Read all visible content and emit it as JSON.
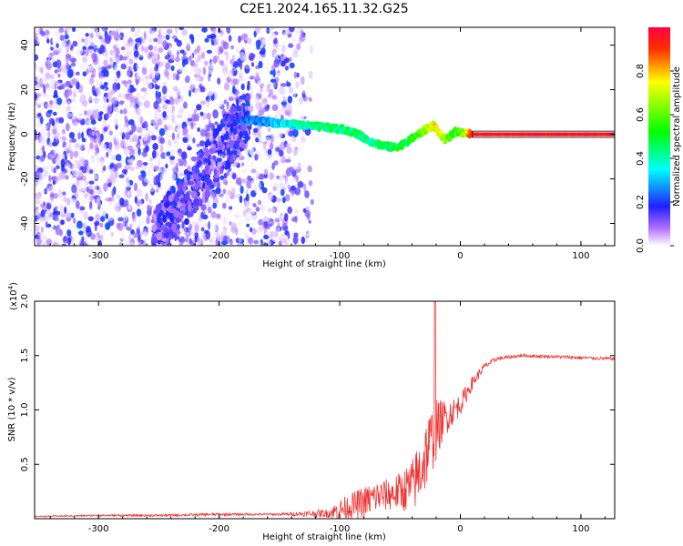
{
  "title": "C2E1.2024.165.11.32.G25",
  "chart_data": [
    {
      "type": "heatmap",
      "xlabel": "Height of straight line (km)",
      "ylabel": "Frequency (Hz)",
      "xlim": [
        -353,
        128
      ],
      "ylim": [
        -50,
        48
      ],
      "x_ticks": [
        -300,
        -200,
        -100,
        0,
        100
      ],
      "x_tick_labels": [
        "-300",
        "-200",
        "-100",
        "0",
        "100"
      ],
      "y_ticks": [
        -40,
        -20,
        0,
        20,
        40
      ],
      "y_tick_labels": [
        "-40",
        "-20",
        "0",
        "20",
        "40"
      ],
      "colorbar": {
        "label": "Normalized spectral amplitude",
        "range": [
          0,
          1
        ],
        "ticks": [
          0,
          0.2,
          0.4,
          0.6,
          0.8
        ],
        "tick_labels": [
          "0.0",
          "0.2",
          "0.4",
          "0.6",
          "0.8"
        ],
        "colors": [
          "#ffffff",
          "#a000ff",
          "#0000ff",
          "#00ffff",
          "#00ff00",
          "#ffff00",
          "#ff0000"
        ]
      },
      "ridge": {
        "x": [
          -190,
          -170,
          -150,
          -130,
          -110,
          -95,
          -85,
          -75,
          -65,
          -55,
          -45,
          -38,
          -32,
          -26,
          -22,
          -18,
          -14,
          -10,
          -5,
          0,
          5,
          10,
          128
        ],
        "y": [
          7,
          6,
          5,
          4,
          3,
          2,
          0,
          -3,
          -5,
          -6,
          -4,
          -1,
          1,
          3,
          4,
          1,
          -2,
          -2,
          1,
          1,
          0.5,
          0,
          0
        ],
        "amplitude": [
          0.15,
          0.25,
          0.3,
          0.4,
          0.45,
          0.45,
          0.45,
          0.4,
          0.45,
          0.45,
          0.5,
          0.55,
          0.6,
          0.7,
          0.75,
          0.7,
          0.65,
          0.6,
          0.55,
          0.6,
          0.7,
          0.95,
          0.95
        ]
      }
    },
    {
      "type": "line",
      "xlabel": "Height of straight line (km)",
      "ylabel": "SNR (10 * v/v)",
      "y_multiplier": "(x10",
      "y_multiplier_exp": "4",
      "xlim": [
        -353,
        128
      ],
      "ylim": [
        0,
        2.0
      ],
      "x_ticks": [
        -300,
        -200,
        -100,
        0,
        100
      ],
      "x_tick_labels": [
        "-300",
        "-200",
        "-100",
        "0",
        "100"
      ],
      "y_ticks": [
        0.5,
        1.0,
        1.5,
        2.0
      ],
      "y_tick_labels": [
        "0.5",
        "1.0",
        "1.5",
        "2.0"
      ],
      "color": "#ee3333",
      "series": [
        {
          "x": [
            -353,
            -300,
            -250,
            -200,
            -150,
            -110,
            -100,
            -90,
            -80,
            -70,
            -60,
            -50,
            -40,
            -35,
            -30,
            -25,
            -20,
            -18,
            -15,
            -10,
            -5,
            0,
            10,
            20,
            30,
            50,
            80,
            100,
            128
          ],
          "y": [
            0.02,
            0.03,
            0.03,
            0.04,
            0.04,
            0.05,
            0.08,
            0.12,
            0.15,
            0.2,
            0.22,
            0.25,
            0.3,
            0.4,
            0.55,
            0.7,
            0.8,
            0.85,
            0.9,
            0.95,
            1.0,
            1.05,
            1.25,
            1.4,
            1.47,
            1.5,
            1.49,
            1.48,
            1.47
          ],
          "spread": [
            0.005,
            0.008,
            0.01,
            0.012,
            0.01,
            0.04,
            0.1,
            0.12,
            0.15,
            0.15,
            0.15,
            0.18,
            0.25,
            0.3,
            0.35,
            0.3,
            0.3,
            0.25,
            0.2,
            0.15,
            0.12,
            0.1,
            0.06,
            0.03,
            0.02,
            0.015,
            0.015,
            0.015,
            0.015
          ]
        }
      ],
      "peak": {
        "x": -21,
        "y": 2.0
      }
    }
  ]
}
